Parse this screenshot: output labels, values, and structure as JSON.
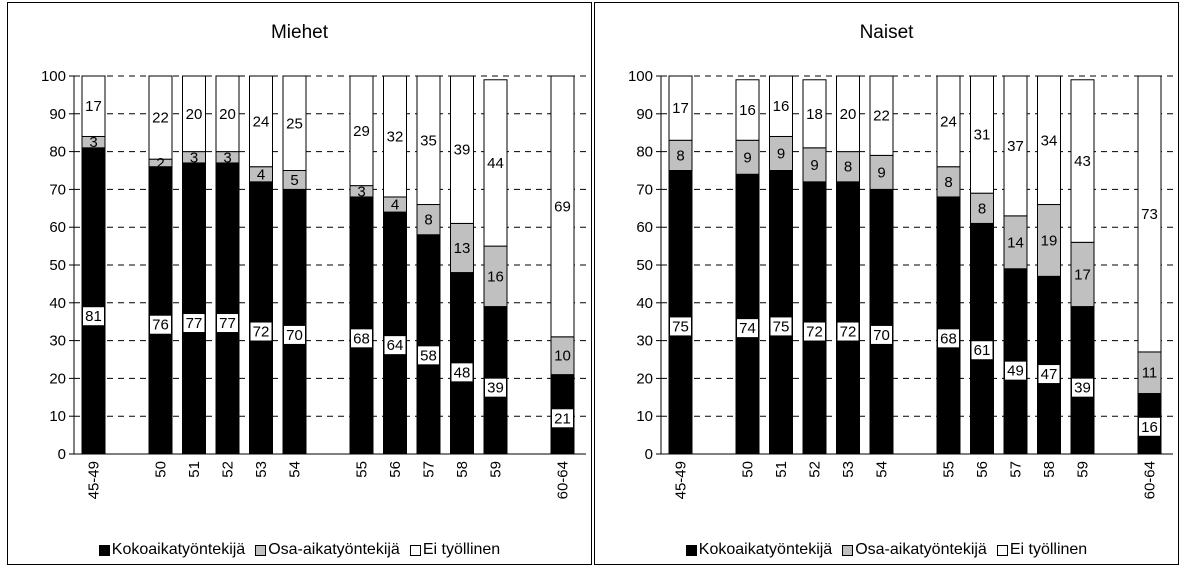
{
  "chart_data": [
    {
      "type": "bar",
      "stacked": true,
      "title": "Miehet",
      "categories": [
        "45-49",
        "50",
        "51",
        "52",
        "53",
        "54",
        "55",
        "56",
        "57",
        "58",
        "59",
        "60-64"
      ],
      "ylim": [
        0,
        100
      ],
      "yticks": [
        0,
        10,
        20,
        30,
        40,
        50,
        60,
        70,
        80,
        90,
        100
      ],
      "grid": true,
      "legend_position": "bottom",
      "series": [
        {
          "name": "Kokoaikatyöntekijä",
          "color": "#000000",
          "values": [
            81,
            76,
            77,
            77,
            72,
            70,
            68,
            64,
            58,
            48,
            39,
            21
          ]
        },
        {
          "name": "Osa-aikatyöntekijä",
          "color": "#c0c0c0",
          "values": [
            3,
            2,
            3,
            3,
            4,
            5,
            3,
            4,
            8,
            13,
            16,
            10
          ]
        },
        {
          "name": "Ei työllinen",
          "color": "#ffffff",
          "values": [
            17,
            22,
            20,
            20,
            24,
            25,
            29,
            32,
            35,
            39,
            44,
            69
          ]
        }
      ]
    },
    {
      "type": "bar",
      "stacked": true,
      "title": "Naiset",
      "categories": [
        "45-49",
        "50",
        "51",
        "52",
        "53",
        "54",
        "55",
        "56",
        "57",
        "58",
        "59",
        "60-64"
      ],
      "ylim": [
        0,
        100
      ],
      "yticks": [
        0,
        10,
        20,
        30,
        40,
        50,
        60,
        70,
        80,
        90,
        100
      ],
      "grid": true,
      "legend_position": "bottom",
      "series": [
        {
          "name": "Kokoaikatyöntekijä",
          "color": "#000000",
          "values": [
            75,
            74,
            75,
            72,
            72,
            70,
            68,
            61,
            49,
            47,
            39,
            16
          ]
        },
        {
          "name": "Osa-aikatyöntekijä",
          "color": "#c0c0c0",
          "values": [
            8,
            9,
            9,
            9,
            8,
            9,
            8,
            8,
            14,
            19,
            17,
            11
          ]
        },
        {
          "name": "Ei työllinen",
          "color": "#ffffff",
          "values": [
            17,
            16,
            16,
            18,
            20,
            22,
            24,
            31,
            37,
            34,
            43,
            73
          ]
        }
      ]
    }
  ]
}
